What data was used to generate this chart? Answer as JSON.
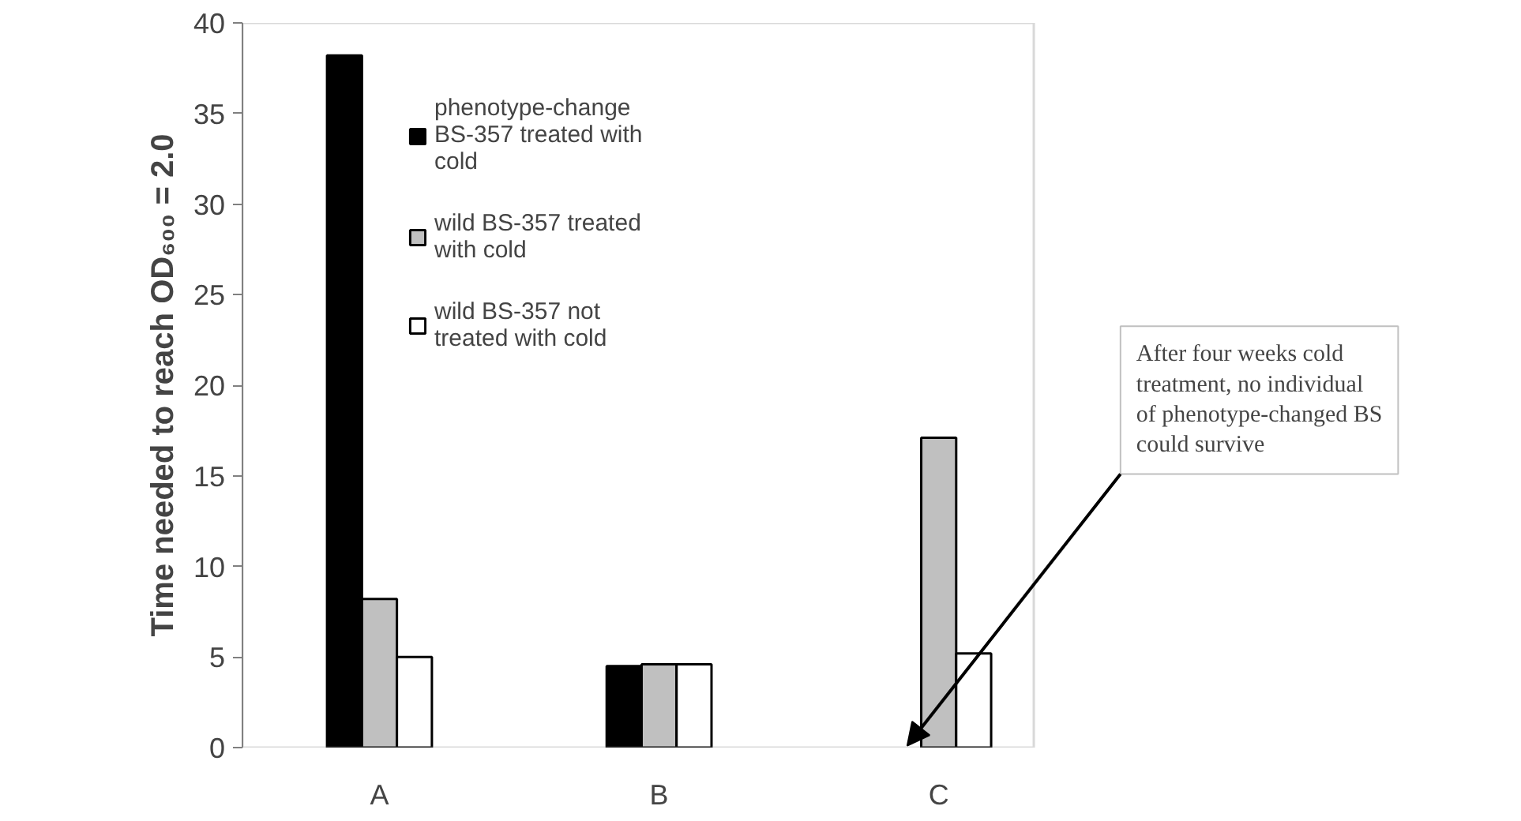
{
  "chart_data": {
    "type": "bar",
    "ylabel": "Time needed to reach OD₆₀₀ = 2.0",
    "categories": [
      "A",
      "B",
      "C"
    ],
    "series": [
      {
        "name": "phenotype-change BS-357 treated with cold",
        "color": "#000000",
        "values": [
          38.2,
          4.5,
          null
        ]
      },
      {
        "name": "wild BS-357 treated with cold",
        "color": "#c0c0c0",
        "values": [
          8.2,
          4.6,
          17.1
        ]
      },
      {
        "name": "wild BS-357 not treated with cold",
        "color": "#ffffff",
        "values": [
          5.0,
          4.6,
          5.2
        ]
      }
    ],
    "ylim": [
      0,
      40
    ],
    "yticks": [
      0,
      5,
      10,
      15,
      20,
      25,
      30,
      35,
      40
    ],
    "grid": false,
    "legend": "top",
    "annotations": [
      "After four weeks cold treatment, no individual of phenotype-changed BS could survive"
    ]
  }
}
